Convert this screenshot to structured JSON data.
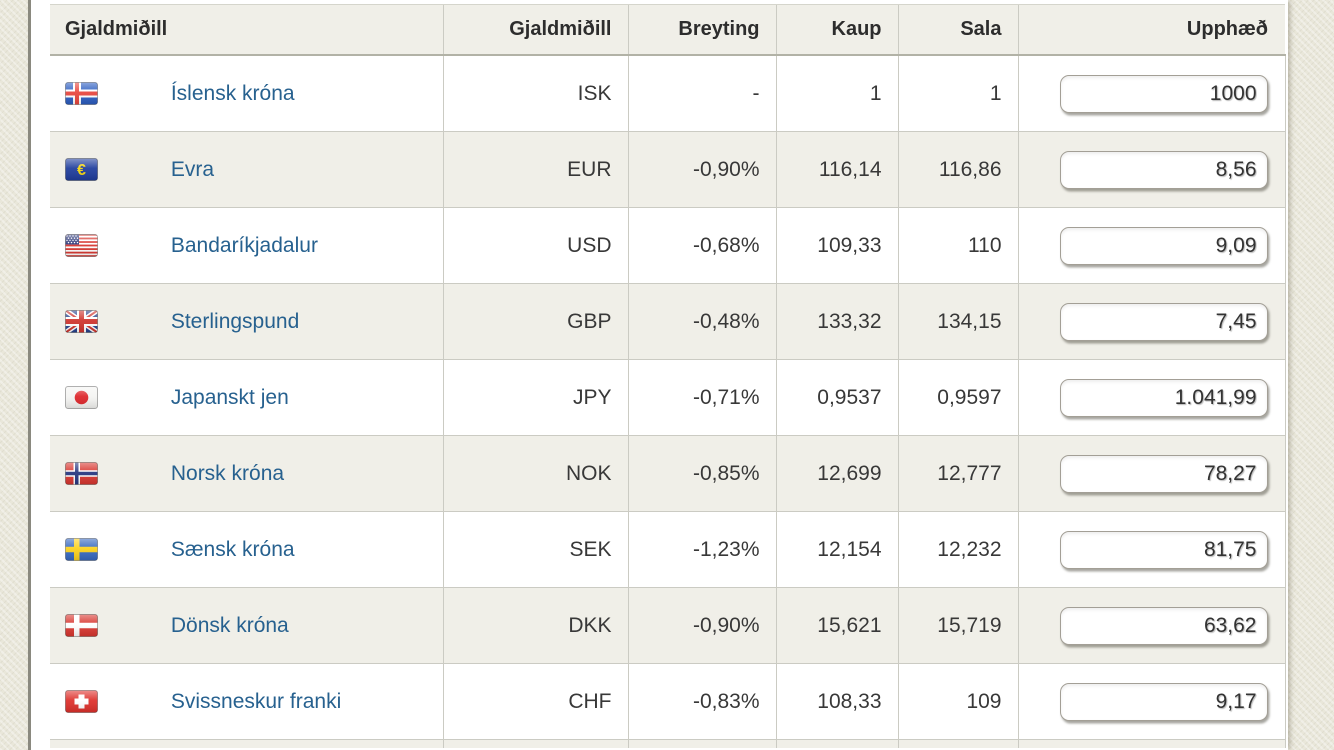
{
  "table": {
    "headers": {
      "currency": "Gjaldmiðill",
      "code": "Gjaldmiðill",
      "change": "Breyting",
      "buy": "Kaup",
      "sell": "Sala",
      "amount": "Upphæð"
    },
    "rows": [
      {
        "name": "Íslensk króna",
        "flag": "iceland-flag",
        "code": "ISK",
        "change": "-",
        "buy": "1",
        "sell": "1",
        "amount": "1000",
        "negative": false
      },
      {
        "name": "Evra",
        "flag": "eu-flag",
        "code": "EUR",
        "change": "-0,90%",
        "buy": "116,14",
        "sell": "116,86",
        "amount": "8,56",
        "negative": true
      },
      {
        "name": "Bandaríkjadalur",
        "flag": "usa-flag",
        "code": "USD",
        "change": "-0,68%",
        "buy": "109,33",
        "sell": "110",
        "amount": "9,09",
        "negative": true
      },
      {
        "name": "Sterlingspund",
        "flag": "uk-flag",
        "code": "GBP",
        "change": "-0,48%",
        "buy": "133,32",
        "sell": "134,15",
        "amount": "7,45",
        "negative": true
      },
      {
        "name": "Japanskt jen",
        "flag": "japan-flag",
        "code": "JPY",
        "change": "-0,71%",
        "buy": "0,9537",
        "sell": "0,9597",
        "amount": "1.041,99",
        "negative": true
      },
      {
        "name": "Norsk króna",
        "flag": "norway-flag",
        "code": "NOK",
        "change": "-0,85%",
        "buy": "12,699",
        "sell": "12,777",
        "amount": "78,27",
        "negative": true
      },
      {
        "name": "Sænsk króna",
        "flag": "sweden-flag",
        "code": "SEK",
        "change": "-1,23%",
        "buy": "12,154",
        "sell": "12,232",
        "amount": "81,75",
        "negative": true
      },
      {
        "name": "Dönsk króna",
        "flag": "denmark-flag",
        "code": "DKK",
        "change": "-0,90%",
        "buy": "15,621",
        "sell": "15,719",
        "amount": "63,62",
        "negative": true
      },
      {
        "name": "Svissneskur franki",
        "flag": "switzerland-flag",
        "code": "CHF",
        "change": "-0,83%",
        "buy": "108,33",
        "sell": "109",
        "amount": "9,17",
        "negative": true
      }
    ]
  },
  "colors": {
    "page_background": "#e9e7da",
    "row_alt_background": "#f0efe8",
    "header_background": "#f0efe8",
    "border": "#cbcbc3",
    "currency_link": "#27618f",
    "negative_change": "#c5413e",
    "text": "#383838"
  }
}
